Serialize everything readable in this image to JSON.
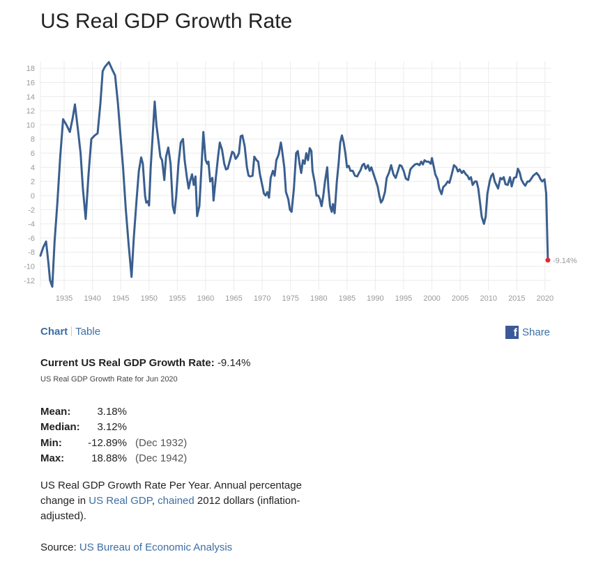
{
  "page": {
    "title": "US Real GDP Growth Rate",
    "tabs": {
      "chart": "Chart",
      "table": "Table"
    },
    "share": "Share",
    "current_label": "Current US Real GDP Growth Rate:",
    "current_value": "-9.14%",
    "current_sub": "US Real GDP Growth Rate for Jun 2020",
    "stats": {
      "mean_label": "Mean:",
      "mean_value": "3.18%",
      "median_label": "Median:",
      "median_value": "3.12%",
      "min_label": "Min:",
      "min_value": "-12.89%",
      "min_date": "(Dec 1932)",
      "max_label": "Max:",
      "max_value": "18.88%",
      "max_date": "(Dec 1942)"
    },
    "description": {
      "text1": "US Real GDP Growth Rate Per Year. Annual percentage change in ",
      "link1": "US Real GDP",
      "sep": ", ",
      "link2": "chained",
      "text2": " 2012 dollars (inflation-adjusted)."
    },
    "source": {
      "label": "Source: ",
      "link": "US Bureau of Economic Analysis"
    }
  },
  "colors": {
    "line": "#3a5f8f",
    "endpoint": "#e8262a",
    "link": "#3b6ea5",
    "grid": "#ebebeb",
    "axis_text": "#999999"
  },
  "chart_data": {
    "type": "line",
    "title": "US Real GDP Growth Rate",
    "xlabel": "",
    "ylabel": "",
    "xlim": [
      1930.8,
      2021.0
    ],
    "ylim": [
      -13,
      19
    ],
    "x_ticks": [
      1935,
      1940,
      1945,
      1950,
      1955,
      1960,
      1965,
      1970,
      1975,
      1980,
      1985,
      1990,
      1995,
      2000,
      2005,
      2010,
      2015,
      2020
    ],
    "y_ticks": [
      -12,
      -10,
      -8,
      -6,
      -4,
      -2,
      0,
      2,
      4,
      6,
      8,
      10,
      12,
      14,
      16,
      18
    ],
    "grid": true,
    "end_label": "-9.14%",
    "series": [
      {
        "values": [
          [
            1930.8,
            -8.5
          ],
          [
            1931.3,
            -7.3
          ],
          [
            1931.8,
            -6.5
          ],
          [
            1932.2,
            -9.5
          ],
          [
            1932.5,
            -12.0
          ],
          [
            1932.9,
            -12.89
          ],
          [
            1933.3,
            -6.5
          ],
          [
            1933.8,
            -1.0
          ],
          [
            1934.3,
            5.5
          ],
          [
            1934.8,
            10.8
          ],
          [
            1935.4,
            10.0
          ],
          [
            1936.0,
            9.0
          ],
          [
            1936.5,
            11.0
          ],
          [
            1936.9,
            12.9
          ],
          [
            1937.4,
            9.5
          ],
          [
            1937.9,
            6.0
          ],
          [
            1938.3,
            1.0
          ],
          [
            1938.8,
            -3.3
          ],
          [
            1939.3,
            3.0
          ],
          [
            1939.8,
            8.0
          ],
          [
            1940.4,
            8.5
          ],
          [
            1940.9,
            8.8
          ],
          [
            1941.4,
            13.0
          ],
          [
            1941.8,
            17.6
          ],
          [
            1942.2,
            18.2
          ],
          [
            1942.9,
            18.88
          ],
          [
            1943.5,
            17.8
          ],
          [
            1944.0,
            17.0
          ],
          [
            1944.5,
            13.0
          ],
          [
            1944.9,
            9.0
          ],
          [
            1945.4,
            4.0
          ],
          [
            1945.9,
            -2.0
          ],
          [
            1946.4,
            -7.0
          ],
          [
            1946.9,
            -11.5
          ],
          [
            1947.3,
            -6.0
          ],
          [
            1947.8,
            -0.5
          ],
          [
            1948.2,
            3.5
          ],
          [
            1948.6,
            5.4
          ],
          [
            1948.9,
            4.5
          ],
          [
            1949.3,
            0.0
          ],
          [
            1949.5,
            -1.0
          ],
          [
            1949.8,
            -0.8
          ],
          [
            1950.0,
            -1.4
          ],
          [
            1950.3,
            4.0
          ],
          [
            1950.6,
            8.0
          ],
          [
            1951.0,
            13.3
          ],
          [
            1951.3,
            10.0
          ],
          [
            1951.7,
            7.5
          ],
          [
            1952.0,
            5.5
          ],
          [
            1952.3,
            5.0
          ],
          [
            1952.7,
            2.2
          ],
          [
            1953.0,
            5.5
          ],
          [
            1953.4,
            6.8
          ],
          [
            1953.8,
            4.5
          ],
          [
            1954.2,
            -1.5
          ],
          [
            1954.5,
            -2.5
          ],
          [
            1954.8,
            0.0
          ],
          [
            1955.2,
            4.5
          ],
          [
            1955.6,
            7.5
          ],
          [
            1956.0,
            8.0
          ],
          [
            1956.3,
            5.0
          ],
          [
            1956.7,
            2.5
          ],
          [
            1957.0,
            1.0
          ],
          [
            1957.3,
            2.2
          ],
          [
            1957.6,
            3.0
          ],
          [
            1957.9,
            1.5
          ],
          [
            1958.2,
            2.7
          ],
          [
            1958.5,
            -2.9
          ],
          [
            1958.9,
            -1.5
          ],
          [
            1959.2,
            3.0
          ],
          [
            1959.6,
            9.0
          ],
          [
            1960.0,
            5.0
          ],
          [
            1960.3,
            4.5
          ],
          [
            1960.5,
            4.8
          ],
          [
            1960.8,
            2.0
          ],
          [
            1961.2,
            2.5
          ],
          [
            1961.4,
            -0.7
          ],
          [
            1961.8,
            2.5
          ],
          [
            1962.2,
            5.5
          ],
          [
            1962.5,
            7.5
          ],
          [
            1962.9,
            6.5
          ],
          [
            1963.3,
            4.5
          ],
          [
            1963.6,
            3.7
          ],
          [
            1963.9,
            3.8
          ],
          [
            1964.3,
            5.0
          ],
          [
            1964.7,
            6.2
          ],
          [
            1965.0,
            6.0
          ],
          [
            1965.3,
            5.2
          ],
          [
            1965.6,
            5.5
          ],
          [
            1965.9,
            6.0
          ],
          [
            1966.2,
            8.4
          ],
          [
            1966.5,
            8.5
          ],
          [
            1966.9,
            7.0
          ],
          [
            1967.3,
            4.0
          ],
          [
            1967.6,
            2.8
          ],
          [
            1967.9,
            2.7
          ],
          [
            1968.3,
            2.8
          ],
          [
            1968.6,
            5.5
          ],
          [
            1969.0,
            5.0
          ],
          [
            1969.3,
            4.8
          ],
          [
            1969.6,
            3.0
          ],
          [
            1970.0,
            1.5
          ],
          [
            1970.3,
            0.3
          ],
          [
            1970.6,
            0.0
          ],
          [
            1970.9,
            0.5
          ],
          [
            1971.2,
            -0.3
          ],
          [
            1971.5,
            2.5
          ],
          [
            1971.9,
            3.5
          ],
          [
            1972.2,
            2.8
          ],
          [
            1972.5,
            5.0
          ],
          [
            1972.9,
            5.8
          ],
          [
            1973.3,
            7.5
          ],
          [
            1973.5,
            6.5
          ],
          [
            1973.9,
            4.0
          ],
          [
            1974.2,
            0.5
          ],
          [
            1974.6,
            -0.5
          ],
          [
            1974.9,
            -2.0
          ],
          [
            1975.2,
            -2.3
          ],
          [
            1975.6,
            1.0
          ],
          [
            1976.0,
            6.0
          ],
          [
            1976.3,
            6.3
          ],
          [
            1976.6,
            4.5
          ],
          [
            1976.9,
            3.2
          ],
          [
            1977.2,
            5.0
          ],
          [
            1977.5,
            4.5
          ],
          [
            1977.8,
            6.0
          ],
          [
            1978.1,
            5.0
          ],
          [
            1978.4,
            6.7
          ],
          [
            1978.7,
            6.3
          ],
          [
            1978.9,
            3.5
          ],
          [
            1979.3,
            1.8
          ],
          [
            1979.6,
            0.0
          ],
          [
            1979.9,
            0.0
          ],
          [
            1980.2,
            -0.5
          ],
          [
            1980.5,
            -1.5
          ],
          [
            1980.8,
            0.0
          ],
          [
            1981.1,
            2.0
          ],
          [
            1981.5,
            4.0
          ],
          [
            1981.7,
            1.0
          ],
          [
            1982.0,
            -1.5
          ],
          [
            1982.3,
            -2.3
          ],
          [
            1982.5,
            -1.2
          ],
          [
            1982.8,
            -2.5
          ],
          [
            1983.2,
            2.0
          ],
          [
            1983.5,
            4.5
          ],
          [
            1983.8,
            7.5
          ],
          [
            1984.1,
            8.5
          ],
          [
            1984.4,
            7.5
          ],
          [
            1984.7,
            6.0
          ],
          [
            1985.0,
            4.0
          ],
          [
            1985.3,
            4.2
          ],
          [
            1985.6,
            3.5
          ],
          [
            1986.0,
            3.5
          ],
          [
            1986.4,
            2.8
          ],
          [
            1986.8,
            2.7
          ],
          [
            1987.1,
            3.2
          ],
          [
            1987.4,
            3.6
          ],
          [
            1987.7,
            4.3
          ],
          [
            1988.0,
            4.5
          ],
          [
            1988.3,
            3.8
          ],
          [
            1988.7,
            4.3
          ],
          [
            1989.0,
            3.5
          ],
          [
            1989.3,
            4.0
          ],
          [
            1989.7,
            3.0
          ],
          [
            1990.0,
            2.3
          ],
          [
            1990.4,
            1.3
          ],
          [
            1990.7,
            0.0
          ],
          [
            1991.0,
            -1.0
          ],
          [
            1991.3,
            -0.6
          ],
          [
            1991.7,
            0.5
          ],
          [
            1992.0,
            2.5
          ],
          [
            1992.4,
            3.2
          ],
          [
            1992.8,
            4.3
          ],
          [
            1993.2,
            3.0
          ],
          [
            1993.6,
            2.5
          ],
          [
            1994.0,
            3.5
          ],
          [
            1994.3,
            4.3
          ],
          [
            1994.6,
            4.2
          ],
          [
            1995.0,
            3.5
          ],
          [
            1995.4,
            2.4
          ],
          [
            1995.8,
            2.2
          ],
          [
            1996.2,
            3.7
          ],
          [
            1996.5,
            4.0
          ],
          [
            1997.0,
            4.4
          ],
          [
            1997.4,
            4.5
          ],
          [
            1997.8,
            4.3
          ],
          [
            1998.1,
            4.8
          ],
          [
            1998.4,
            4.4
          ],
          [
            1998.7,
            5.0
          ],
          [
            1999.0,
            4.8
          ],
          [
            1999.4,
            4.8
          ],
          [
            1999.8,
            4.5
          ],
          [
            2000.0,
            5.3
          ],
          [
            2000.3,
            4.2
          ],
          [
            2000.6,
            3.0
          ],
          [
            2001.0,
            2.3
          ],
          [
            2001.3,
            1.0
          ],
          [
            2001.7,
            0.2
          ],
          [
            2002.0,
            1.2
          ],
          [
            2002.4,
            1.5
          ],
          [
            2002.8,
            2.0
          ],
          [
            2003.1,
            1.8
          ],
          [
            2003.5,
            3.0
          ],
          [
            2003.9,
            4.3
          ],
          [
            2004.3,
            4.0
          ],
          [
            2004.6,
            3.4
          ],
          [
            2004.9,
            3.7
          ],
          [
            2005.3,
            3.2
          ],
          [
            2005.6,
            3.5
          ],
          [
            2006.0,
            3.0
          ],
          [
            2006.3,
            2.8
          ],
          [
            2006.6,
            2.3
          ],
          [
            2006.9,
            2.6
          ],
          [
            2007.2,
            1.5
          ],
          [
            2007.6,
            2.0
          ],
          [
            2007.9,
            2.0
          ],
          [
            2008.2,
            1.0
          ],
          [
            2008.5,
            -1.0
          ],
          [
            2008.8,
            -3.0
          ],
          [
            2009.2,
            -4.0
          ],
          [
            2009.5,
            -3.0
          ],
          [
            2009.8,
            0.2
          ],
          [
            2010.2,
            2.0
          ],
          [
            2010.5,
            2.8
          ],
          [
            2010.8,
            3.1
          ],
          [
            2011.1,
            2.0
          ],
          [
            2011.4,
            1.5
          ],
          [
            2011.7,
            1.0
          ],
          [
            2012.1,
            2.5
          ],
          [
            2012.4,
            2.3
          ],
          [
            2012.7,
            2.6
          ],
          [
            2013.0,
            1.6
          ],
          [
            2013.4,
            1.5
          ],
          [
            2013.8,
            2.6
          ],
          [
            2014.1,
            1.3
          ],
          [
            2014.5,
            2.5
          ],
          [
            2014.9,
            2.6
          ],
          [
            2015.2,
            3.8
          ],
          [
            2015.5,
            3.3
          ],
          [
            2015.8,
            2.3
          ],
          [
            2016.2,
            1.7
          ],
          [
            2016.5,
            1.4
          ],
          [
            2016.9,
            2.0
          ],
          [
            2017.2,
            2.0
          ],
          [
            2017.5,
            2.3
          ],
          [
            2017.9,
            2.8
          ],
          [
            2018.2,
            3.0
          ],
          [
            2018.5,
            3.2
          ],
          [
            2018.9,
            2.8
          ],
          [
            2019.2,
            2.3
          ],
          [
            2019.5,
            2.0
          ],
          [
            2019.9,
            2.3
          ],
          [
            2020.2,
            0.3
          ],
          [
            2020.5,
            -9.14
          ]
        ]
      }
    ]
  }
}
